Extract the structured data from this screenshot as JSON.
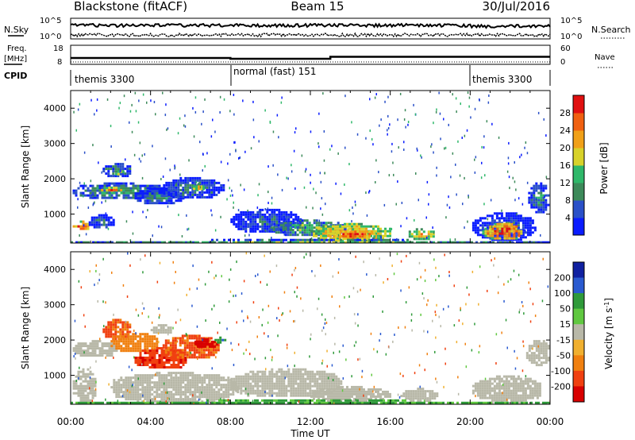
{
  "header": {
    "radar": "Blackstone (fitACF)",
    "beam": "Beam 15",
    "date": "30/Jul/2016"
  },
  "noise_panel": {
    "left_label": "N.Sky",
    "right_label": "N.Search",
    "ticks_left": [
      "10^5",
      "10^0"
    ],
    "ticks_right": [
      "10^5",
      "10^0"
    ]
  },
  "freq_panel": {
    "left_label_1": "Freq.",
    "left_label_2": "[MHz]",
    "right_label": "Nave",
    "ticks_left": [
      "18",
      "8"
    ],
    "ticks_right": [
      "60",
      "0"
    ]
  },
  "cpid": {
    "label": "CPID",
    "segments": [
      {
        "name": "themis 3300",
        "start_h": 0,
        "end_h": 8
      },
      {
        "name": "normal (fast) 151",
        "start_h": 8,
        "end_h": 20
      },
      {
        "name": "themis 3300",
        "start_h": 20,
        "end_h": 24
      }
    ]
  },
  "chart_data": [
    {
      "type": "heatmap",
      "quantity": "power",
      "ylabel": "Slant Range [km]",
      "xlabel": "Time UT",
      "xlim": [
        0,
        24
      ],
      "ylim": [
        180,
        4500
      ],
      "x_ticks": [
        "00:00",
        "04:00",
        "08:00",
        "12:00",
        "16:00",
        "20:00",
        "00:00"
      ],
      "y_ticks": [
        1000,
        2000,
        3000,
        4000
      ],
      "colorbar": {
        "label": "Power [dB]",
        "ticks": [
          4,
          8,
          12,
          16,
          20,
          24,
          28
        ],
        "range": [
          0,
          32
        ],
        "colors": [
          "#0a1cff",
          "#2a50c8",
          "#3d8a5a",
          "#2fb86a",
          "#d8d22a",
          "#f0a018",
          "#f06010",
          "#e01010"
        ]
      },
      "regions": [
        {
          "t": [
            0.1,
            0.9
          ],
          "r": [
            560,
            820
          ],
          "value": 29
        },
        {
          "t": [
            0.9,
            2.1
          ],
          "r": [
            600,
            1000
          ],
          "value": 10
        },
        {
          "t": [
            0.1,
            4.8
          ],
          "r": [
            1450,
            1900
          ],
          "value": 14
        },
        {
          "t": [
            1.4,
            2.6
          ],
          "r": [
            1650,
            1780
          ],
          "value": 26
        },
        {
          "t": [
            1.6,
            3.0
          ],
          "r": [
            2050,
            2450
          ],
          "value": 13
        },
        {
          "t": [
            2.1,
            2.6
          ],
          "r": [
            2150,
            2300
          ],
          "value": 21
        },
        {
          "t": [
            3.2,
            5.6
          ],
          "r": [
            1300,
            1750
          ],
          "value": 11
        },
        {
          "t": [
            4.5,
            7.6
          ],
          "r": [
            1450,
            2050
          ],
          "value": 11
        },
        {
          "t": [
            6.0,
            6.6
          ],
          "r": [
            1700,
            1880
          ],
          "value": 22
        },
        {
          "t": [
            8.0,
            11.5
          ],
          "r": [
            500,
            1150
          ],
          "value": 9
        },
        {
          "t": [
            10.0,
            13.8
          ],
          "r": [
            400,
            850
          ],
          "value": 16
        },
        {
          "t": [
            12.0,
            16.0
          ],
          "r": [
            250,
            750
          ],
          "value": 24
        },
        {
          "t": [
            13.0,
            15.2
          ],
          "r": [
            300,
            600
          ],
          "value": 29
        },
        {
          "t": [
            16.8,
            18.2
          ],
          "r": [
            300,
            600
          ],
          "value": 22
        },
        {
          "t": [
            20.1,
            23.2
          ],
          "r": [
            280,
            1050
          ],
          "value": 9
        },
        {
          "t": [
            20.6,
            22.6
          ],
          "r": [
            300,
            750
          ],
          "value": 29
        },
        {
          "t": [
            22.9,
            23.9
          ],
          "r": [
            1050,
            1900
          ],
          "value": 12
        },
        {
          "t": [
            0.0,
            24.0
          ],
          "r": [
            180,
            300
          ],
          "value": 16
        }
      ]
    },
    {
      "type": "heatmap",
      "quantity": "velocity",
      "ylabel": "Slant Range [km]",
      "xlabel": "Time UT",
      "xlim": [
        0,
        24
      ],
      "ylim": [
        180,
        4500
      ],
      "x_ticks": [
        "00:00",
        "04:00",
        "08:00",
        "12:00",
        "16:00",
        "20:00",
        "00:00"
      ],
      "y_ticks": [
        1000,
        2000,
        3000,
        4000
      ],
      "colorbar": {
        "label": "Velocity [m s",
        "label_sup": "-1",
        "label_end": "]",
        "ticks": [
          200,
          100,
          50,
          15,
          -15,
          -50,
          -100,
          -200
        ],
        "colors": [
          "#1020a0",
          "#2a5ad0",
          "#2f9a3a",
          "#60c840",
          "#b8b8a8",
          "#f0b030",
          "#f08010",
          "#f04010",
          "#d80000"
        ]
      },
      "regions": [
        {
          "t": [
            0.1,
            2.3
          ],
          "r": [
            1550,
            2000
          ],
          "value": 0
        },
        {
          "t": [
            0.1,
            1.2
          ],
          "r": [
            250,
            1200
          ],
          "value": 0
        },
        {
          "t": [
            1.6,
            3.0
          ],
          "r": [
            2050,
            2600
          ],
          "value": -80
        },
        {
          "t": [
            2.0,
            4.4
          ],
          "r": [
            1700,
            2200
          ],
          "value": -60
        },
        {
          "t": [
            3.2,
            5.8
          ],
          "r": [
            1200,
            1800
          ],
          "value": -140
        },
        {
          "t": [
            4.6,
            7.4
          ],
          "r": [
            1500,
            2150
          ],
          "value": -80
        },
        {
          "t": [
            4.0,
            5.0
          ],
          "r": [
            2200,
            2450
          ],
          "value": 0
        },
        {
          "t": [
            6.2,
            7.3
          ],
          "r": [
            1800,
            2050
          ],
          "value": -180
        },
        {
          "t": [
            7.2,
            7.7
          ],
          "r": [
            1950,
            2100
          ],
          "value": 70
        },
        {
          "t": [
            2.0,
            8.4
          ],
          "r": [
            250,
            1100
          ],
          "value": 0
        },
        {
          "t": [
            8.0,
            13.5
          ],
          "r": [
            400,
            1200
          ],
          "value": 0
        },
        {
          "t": [
            12.0,
            16.0
          ],
          "r": [
            250,
            700
          ],
          "value": 0
        },
        {
          "t": [
            16.5,
            18.3
          ],
          "r": [
            280,
            650
          ],
          "value": 0
        },
        {
          "t": [
            20.1,
            23.5
          ],
          "r": [
            250,
            1000
          ],
          "value": 0
        },
        {
          "t": [
            22.8,
            24.0
          ],
          "r": [
            1300,
            2000
          ],
          "value": 0
        },
        {
          "t": [
            0.0,
            24.0
          ],
          "r": [
            180,
            320
          ],
          "value": 40
        }
      ]
    }
  ]
}
